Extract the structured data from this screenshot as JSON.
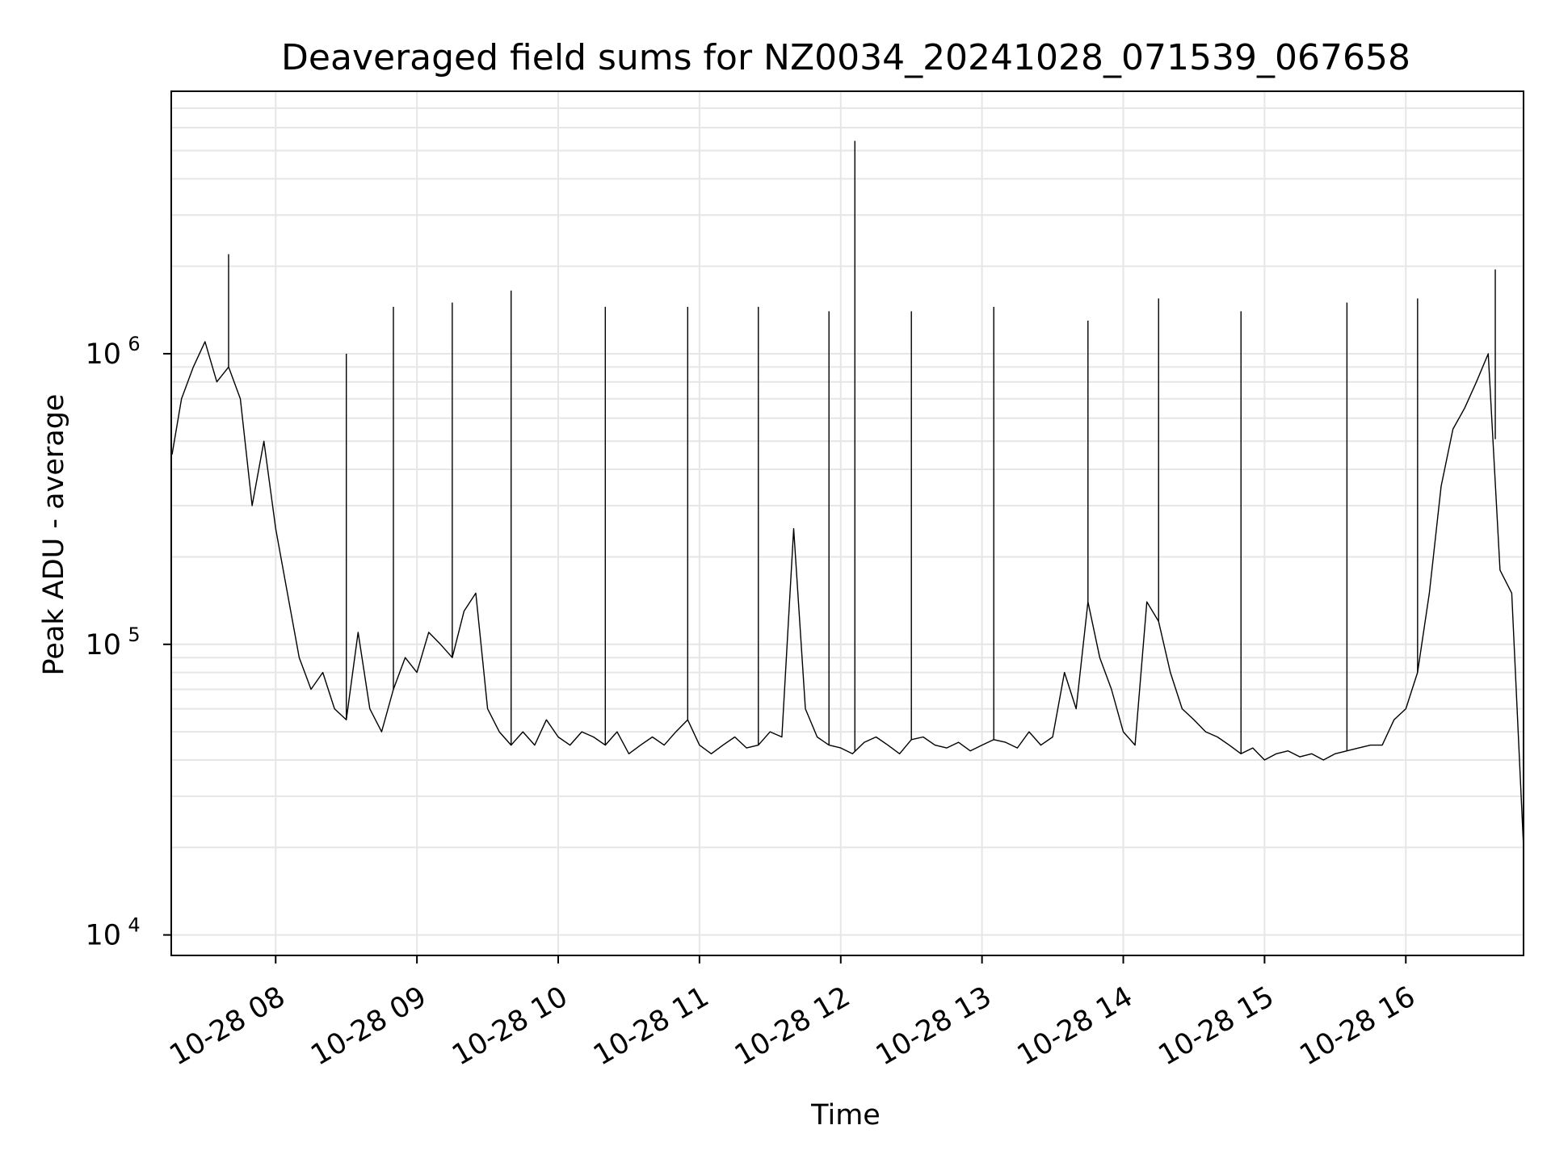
{
  "chart_data": {
    "type": "line",
    "title": "Deaveraged field sums for NZ0034_20241028_071539_067658",
    "xlabel": "Time",
    "ylabel": "Peak ADU - average",
    "y_scale": "log",
    "ylim": [
      8500,
      8000000
    ],
    "xlim": [
      "2024-10-28 07:15:39",
      "2024-10-28 16:50:00"
    ],
    "grid": true,
    "line_color": "#000000",
    "x_ticks": [
      {
        "label": "10-28 08",
        "time": "2024-10-28 08:00"
      },
      {
        "label": "10-28 09",
        "time": "2024-10-28 09:00"
      },
      {
        "label": "10-28 10",
        "time": "2024-10-28 10:00"
      },
      {
        "label": "10-28 11",
        "time": "2024-10-28 11:00"
      },
      {
        "label": "10-28 12",
        "time": "2024-10-28 12:00"
      },
      {
        "label": "10-28 13",
        "time": "2024-10-28 13:00"
      },
      {
        "label": "10-28 14",
        "time": "2024-10-28 14:00"
      },
      {
        "label": "10-28 15",
        "time": "2024-10-28 15:00"
      },
      {
        "label": "10-28 16",
        "time": "2024-10-28 16:00"
      }
    ],
    "y_ticks": [
      {
        "base": "10",
        "exp": "4",
        "value": 10000
      },
      {
        "base": "10",
        "exp": "5",
        "value": 100000
      },
      {
        "base": "10",
        "exp": "6",
        "value": 1000000
      }
    ],
    "series": [
      {
        "x": [
          "2024-10-28 07:16",
          "2024-10-28 07:20",
          "2024-10-28 07:25",
          "2024-10-28 07:30",
          "2024-10-28 07:35",
          "2024-10-28 07:40",
          "2024-10-28 07:45",
          "2024-10-28 07:50",
          "2024-10-28 07:55",
          "2024-10-28 08:00",
          "2024-10-28 08:05",
          "2024-10-28 08:10",
          "2024-10-28 08:15",
          "2024-10-28 08:20",
          "2024-10-28 08:25",
          "2024-10-28 08:30",
          "2024-10-28 08:35",
          "2024-10-28 08:40",
          "2024-10-28 08:45",
          "2024-10-28 08:50",
          "2024-10-28 08:55",
          "2024-10-28 09:00",
          "2024-10-28 09:05",
          "2024-10-28 09:10",
          "2024-10-28 09:15",
          "2024-10-28 09:20",
          "2024-10-28 09:25",
          "2024-10-28 09:30",
          "2024-10-28 09:35",
          "2024-10-28 09:40",
          "2024-10-28 09:45",
          "2024-10-28 09:50",
          "2024-10-28 09:55",
          "2024-10-28 10:00",
          "2024-10-28 10:05",
          "2024-10-28 10:10",
          "2024-10-28 10:15",
          "2024-10-28 10:20",
          "2024-10-28 10:25",
          "2024-10-28 10:30",
          "2024-10-28 10:35",
          "2024-10-28 10:40",
          "2024-10-28 10:45",
          "2024-10-28 10:50",
          "2024-10-28 10:55",
          "2024-10-28 11:00",
          "2024-10-28 11:05",
          "2024-10-28 11:10",
          "2024-10-28 11:15",
          "2024-10-28 11:20",
          "2024-10-28 11:25",
          "2024-10-28 11:30",
          "2024-10-28 11:35",
          "2024-10-28 11:40",
          "2024-10-28 11:45",
          "2024-10-28 11:50",
          "2024-10-28 11:55",
          "2024-10-28 12:00",
          "2024-10-28 12:05",
          "2024-10-28 12:10",
          "2024-10-28 12:15",
          "2024-10-28 12:20",
          "2024-10-28 12:25",
          "2024-10-28 12:30",
          "2024-10-28 12:35",
          "2024-10-28 12:40",
          "2024-10-28 12:45",
          "2024-10-28 12:50",
          "2024-10-28 12:55",
          "2024-10-28 13:00",
          "2024-10-28 13:05",
          "2024-10-28 13:10",
          "2024-10-28 13:15",
          "2024-10-28 13:20",
          "2024-10-28 13:25",
          "2024-10-28 13:30",
          "2024-10-28 13:35",
          "2024-10-28 13:40",
          "2024-10-28 13:45",
          "2024-10-28 13:50",
          "2024-10-28 13:55",
          "2024-10-28 14:00",
          "2024-10-28 14:05",
          "2024-10-28 14:10",
          "2024-10-28 14:15",
          "2024-10-28 14:20",
          "2024-10-28 14:25",
          "2024-10-28 14:30",
          "2024-10-28 14:35",
          "2024-10-28 14:40",
          "2024-10-28 14:45",
          "2024-10-28 14:50",
          "2024-10-28 14:55",
          "2024-10-28 15:00",
          "2024-10-28 15:05",
          "2024-10-28 15:10",
          "2024-10-28 15:15",
          "2024-10-28 15:20",
          "2024-10-28 15:25",
          "2024-10-28 15:30",
          "2024-10-28 15:35",
          "2024-10-28 15:40",
          "2024-10-28 15:45",
          "2024-10-28 15:50",
          "2024-10-28 15:55",
          "2024-10-28 16:00",
          "2024-10-28 16:05",
          "2024-10-28 16:10",
          "2024-10-28 16:15",
          "2024-10-28 16:20",
          "2024-10-28 16:25",
          "2024-10-28 16:30",
          "2024-10-28 16:35",
          "2024-10-28 16:40",
          "2024-10-28 16:45",
          "2024-10-28 16:50"
        ],
        "y": [
          450000,
          700000,
          900000,
          1100000,
          800000,
          900000,
          700000,
          300000,
          500000,
          250000,
          150000,
          90000,
          70000,
          80000,
          60000,
          55000,
          110000,
          60000,
          50000,
          70000,
          90000,
          80000,
          110000,
          100000,
          90000,
          130000,
          150000,
          60000,
          50000,
          45000,
          50000,
          45000,
          55000,
          48000,
          45000,
          50000,
          48000,
          45000,
          50000,
          42000,
          45000,
          48000,
          45000,
          50000,
          55000,
          45000,
          42000,
          45000,
          48000,
          44000,
          45000,
          50000,
          48000,
          250000,
          60000,
          48000,
          45000,
          44000,
          42000,
          46000,
          48000,
          45000,
          42000,
          47000,
          48000,
          45000,
          44000,
          46000,
          43000,
          45000,
          47000,
          46000,
          44000,
          50000,
          45000,
          48000,
          80000,
          60000,
          140000,
          90000,
          70000,
          50000,
          45000,
          140000,
          120000,
          80000,
          60000,
          55000,
          50000,
          48000,
          45000,
          42000,
          44000,
          40000,
          42000,
          43000,
          41000,
          42000,
          40000,
          42000,
          43000,
          44000,
          45000,
          45000,
          55000,
          60000,
          80000,
          150000,
          350000,
          550000,
          650000,
          800000,
          1000000,
          180000,
          150000,
          20000
        ]
      }
    ],
    "spikes": [
      {
        "time": "2024-10-28 07:40",
        "value": 2200000
      },
      {
        "time": "2024-10-28 08:30",
        "value": 1000000
      },
      {
        "time": "2024-10-28 08:50",
        "value": 1450000
      },
      {
        "time": "2024-10-28 09:15",
        "value": 1500000
      },
      {
        "time": "2024-10-28 09:40",
        "value": 1650000
      },
      {
        "time": "2024-10-28 10:20",
        "value": 1450000
      },
      {
        "time": "2024-10-28 10:55",
        "value": 1450000
      },
      {
        "time": "2024-10-28 11:25",
        "value": 1450000
      },
      {
        "time": "2024-10-28 11:55",
        "value": 1400000
      },
      {
        "time": "2024-10-28 12:06",
        "value": 5400000
      },
      {
        "time": "2024-10-28 12:30",
        "value": 1400000
      },
      {
        "time": "2024-10-28 13:05",
        "value": 1450000
      },
      {
        "time": "2024-10-28 13:45",
        "value": 1300000
      },
      {
        "time": "2024-10-28 14:15",
        "value": 1550000
      },
      {
        "time": "2024-10-28 14:50",
        "value": 1400000
      },
      {
        "time": "2024-10-28 15:35",
        "value": 1500000
      },
      {
        "time": "2024-10-28 16:05",
        "value": 1550000
      },
      {
        "time": "2024-10-28 16:38",
        "value": 1950000
      }
    ]
  }
}
